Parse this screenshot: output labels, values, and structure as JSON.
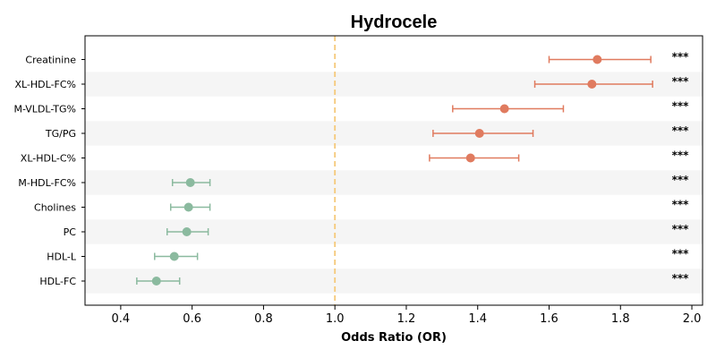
{
  "chart_data": {
    "type": "scatter",
    "title": "Hydrocele",
    "xlabel": "Odds Ratio (OR)",
    "xlim": [
      0.3,
      2.03
    ],
    "xticks": [
      0.4,
      0.6,
      0.8,
      1.0,
      1.2,
      1.4,
      1.6,
      1.8,
      2.0
    ],
    "xtick_labels": [
      "0.4",
      "0.6",
      "0.8",
      "1.0",
      "1.2",
      "1.4",
      "1.6",
      "1.8",
      "2.0"
    ],
    "reference_line": 1.0,
    "grid": false,
    "banded_rows": true,
    "colors": {
      "positive": "#e07b5f",
      "negative": "#8bba9f",
      "reference": "#f5c97a",
      "band": "#f5f5f5"
    },
    "rows": [
      {
        "label": "Creatinine",
        "or": 1.735,
        "lower": 1.6,
        "upper": 1.885,
        "sig": "***"
      },
      {
        "label": "XL-HDL-FC%",
        "or": 1.72,
        "lower": 1.56,
        "upper": 1.89,
        "sig": "***"
      },
      {
        "label": "M-VLDL-TG%",
        "or": 1.475,
        "lower": 1.33,
        "upper": 1.64,
        "sig": "***"
      },
      {
        "label": "TG/PG",
        "or": 1.405,
        "lower": 1.275,
        "upper": 1.555,
        "sig": "***"
      },
      {
        "label": "XL-HDL-C%",
        "or": 1.38,
        "lower": 1.265,
        "upper": 1.515,
        "sig": "***"
      },
      {
        "label": "M-HDL-FC%",
        "or": 0.595,
        "lower": 0.545,
        "upper": 0.65,
        "sig": "***"
      },
      {
        "label": "Cholines",
        "or": 0.59,
        "lower": 0.54,
        "upper": 0.65,
        "sig": "***"
      },
      {
        "label": "PC",
        "or": 0.585,
        "lower": 0.53,
        "upper": 0.645,
        "sig": "***"
      },
      {
        "label": "HDL-L",
        "or": 0.55,
        "lower": 0.495,
        "upper": 0.615,
        "sig": "***"
      },
      {
        "label": "HDL-FC",
        "or": 0.5,
        "lower": 0.445,
        "upper": 0.565,
        "sig": "***"
      }
    ]
  }
}
